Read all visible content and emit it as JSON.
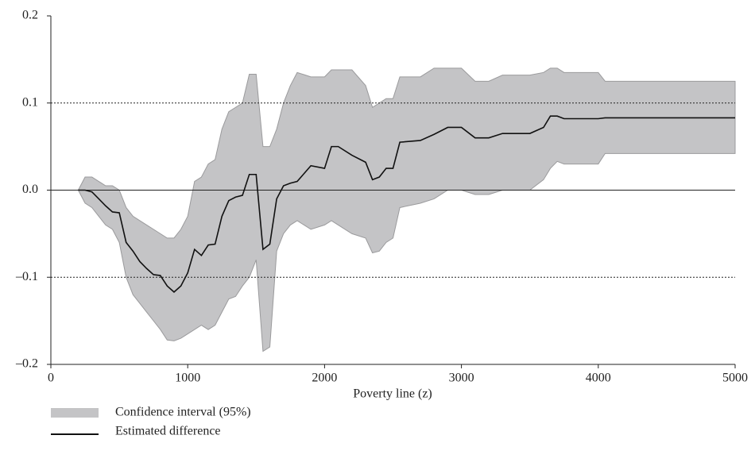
{
  "chart_data": {
    "type": "line",
    "x_label": "Poverty line (z)",
    "x": [
      200,
      250,
      300,
      350,
      400,
      450,
      500,
      550,
      600,
      650,
      700,
      750,
      800,
      850,
      900,
      950,
      1000,
      1050,
      1100,
      1150,
      1200,
      1250,
      1300,
      1350,
      1400,
      1450,
      1500,
      1550,
      1600,
      1650,
      1700,
      1750,
      1800,
      1900,
      2000,
      2050,
      2100,
      2200,
      2300,
      2350,
      2400,
      2450,
      2500,
      2550,
      2700,
      2800,
      2900,
      3000,
      3100,
      3200,
      3300,
      3500,
      3600,
      3650,
      3700,
      3750,
      4000,
      4050,
      5000
    ],
    "series": [
      {
        "name": "Confidence interval (95%)",
        "color": "#c4c4c6",
        "upper": [
          0,
          0.015,
          0.015,
          0.01,
          0.005,
          0.005,
          0,
          -0.02,
          -0.03,
          -0.035,
          -0.04,
          -0.045,
          -0.05,
          -0.055,
          -0.055,
          -0.045,
          -0.03,
          0.01,
          0.015,
          0.03,
          0.035,
          0.07,
          0.09,
          0.095,
          0.1,
          0.133,
          0.133,
          0.05,
          0.05,
          0.07,
          0.1,
          0.12,
          0.135,
          0.13,
          0.13,
          0.138,
          0.138,
          0.138,
          0.12,
          0.095,
          0.1,
          0.105,
          0.105,
          0.13,
          0.13,
          0.14,
          0.14,
          0.14,
          0.125,
          0.125,
          0.132,
          0.132,
          0.135,
          0.14,
          0.14,
          0.135,
          0.135,
          0.125,
          0.125
        ],
        "lower": [
          0,
          -0.015,
          -0.02,
          -0.03,
          -0.04,
          -0.045,
          -0.06,
          -0.1,
          -0.12,
          -0.13,
          -0.14,
          -0.15,
          -0.16,
          -0.172,
          -0.173,
          -0.17,
          -0.165,
          -0.16,
          -0.155,
          -0.16,
          -0.155,
          -0.14,
          -0.125,
          -0.122,
          -0.11,
          -0.1,
          -0.08,
          -0.185,
          -0.18,
          -0.07,
          -0.05,
          -0.04,
          -0.035,
          -0.045,
          -0.04,
          -0.035,
          -0.04,
          -0.05,
          -0.055,
          -0.072,
          -0.07,
          -0.06,
          -0.055,
          -0.02,
          -0.015,
          -0.01,
          0,
          0,
          -0.005,
          -0.005,
          0,
          0,
          0.012,
          0.025,
          0.033,
          0.03,
          0.03,
          0.042,
          0.042
        ]
      },
      {
        "name": "Estimated difference",
        "color": "#111111",
        "values": [
          0,
          0,
          -0.002,
          -0.01,
          -0.018,
          -0.025,
          -0.026,
          -0.06,
          -0.07,
          -0.082,
          -0.09,
          -0.097,
          -0.098,
          -0.11,
          -0.117,
          -0.11,
          -0.095,
          -0.068,
          -0.075,
          -0.063,
          -0.062,
          -0.03,
          -0.012,
          -0.008,
          -0.006,
          0.018,
          0.018,
          -0.068,
          -0.062,
          -0.01,
          0.005,
          0.008,
          0.01,
          0.028,
          0.025,
          0.05,
          0.05,
          0.04,
          0.032,
          0.012,
          0.015,
          0.025,
          0.025,
          0.055,
          0.057,
          0.064,
          0.072,
          0.072,
          0.06,
          0.06,
          0.065,
          0.065,
          0.072,
          0.085,
          0.085,
          0.082,
          0.082,
          0.083,
          0.083
        ]
      }
    ],
    "xlim": [
      0,
      5000
    ],
    "xticks": [
      0,
      1000,
      2000,
      3000,
      4000,
      5000
    ],
    "ylim": [
      -0.2,
      0.2
    ],
    "yticks": [
      {
        "value": -0.2,
        "label": "–0.2"
      },
      {
        "value": -0.1,
        "label": "–0.1"
      },
      {
        "value": 0,
        "label": "0.0"
      },
      0.1,
      0.2
    ],
    "grid": true
  }
}
